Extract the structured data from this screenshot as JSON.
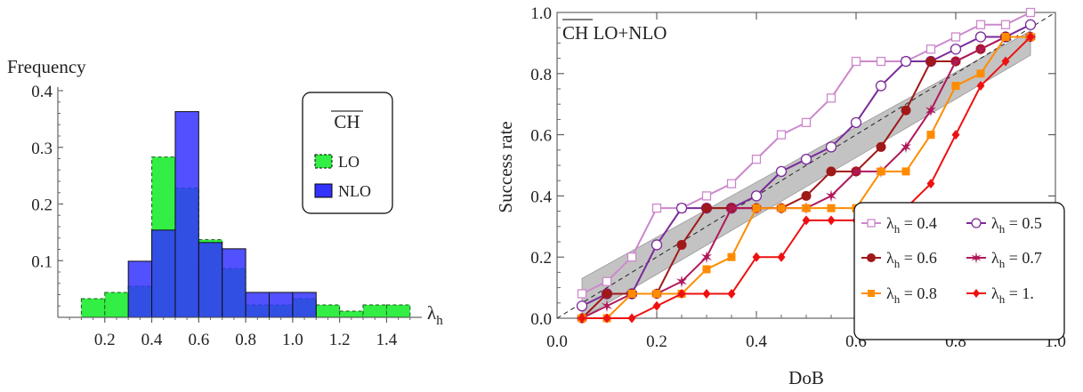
{
  "chart_data": [
    {
      "type": "histogram",
      "ylabel": "Frequency",
      "xlabel": "λ",
      "xlabel_sub": "h",
      "xlim": [
        0.0,
        1.55
      ],
      "ylim": [
        0,
        0.4
      ],
      "xticks": [
        "0.2",
        "0.4",
        "0.6",
        "0.8",
        "1.0",
        "1.2",
        "1.4"
      ],
      "xtick_values": [
        0.2,
        0.4,
        0.6,
        0.8,
        1.0,
        1.2,
        1.4
      ],
      "yticks": [
        "0.1",
        "0.2",
        "0.3",
        "0.4"
      ],
      "ytick_values": [
        0.1,
        0.2,
        0.3,
        0.4
      ],
      "bin_edges": [
        0.1,
        0.2,
        0.3,
        0.4,
        0.5,
        0.6,
        0.7,
        0.8,
        0.9,
        1.0,
        1.1,
        1.2,
        1.3,
        1.4,
        1.5
      ],
      "legend_title": "CH",
      "legend_placement": "top-right",
      "series": [
        {
          "name": "LO",
          "color": "#33ee44",
          "values": [
            0.033,
            0.044,
            0.055,
            0.283,
            0.228,
            0.137,
            0.086,
            0.022,
            0.022,
            0.033,
            0.022,
            0.011,
            0.022,
            0.022
          ]
        },
        {
          "name": "NLO",
          "color": "#3333ff",
          "values": [
            0,
            0,
            0.099,
            0.154,
            0.363,
            0.132,
            0.121,
            0.044,
            0.044,
            0.044,
            0,
            0,
            0,
            0
          ]
        }
      ]
    },
    {
      "type": "line",
      "title": "CH LO+NLO",
      "title_overline_part": "CH",
      "title_rest": " LO+NLO",
      "xlabel": "DoB",
      "ylabel": "Success rate",
      "xlim": [
        0.0,
        1.0
      ],
      "ylim": [
        0.0,
        1.0
      ],
      "xticks": [
        "0.0",
        "0.2",
        "0.4",
        "0.6",
        "0.8",
        "1.0"
      ],
      "xtick_values": [
        0.0,
        0.2,
        0.4,
        0.6,
        0.8,
        1.0
      ],
      "yticks": [
        "0.0",
        "0.2",
        "0.4",
        "0.6",
        "0.8",
        "1.0"
      ],
      "ytick_values": [
        0.0,
        0.2,
        0.4,
        0.6,
        0.8,
        1.0
      ],
      "diagonal": true,
      "band": {
        "x": [
          0.05,
          0.95
        ],
        "lower": [
          0.0,
          0.86
        ],
        "upper": [
          0.13,
          0.94
        ]
      },
      "legend_placement": "bottom-right",
      "x": [
        0.05,
        0.1,
        0.15,
        0.2,
        0.25,
        0.3,
        0.35,
        0.4,
        0.45,
        0.5,
        0.55,
        0.6,
        0.65,
        0.7,
        0.75,
        0.8,
        0.85,
        0.9,
        0.95
      ],
      "series": [
        {
          "name": "λh = 0.4",
          "label_prefix": "λ",
          "label_sub": "h",
          "label_suffix": " = 0.4",
          "color": "#cc88cc",
          "marker": "open-square",
          "values": [
            0.08,
            0.12,
            0.2,
            0.36,
            0.36,
            0.4,
            0.44,
            0.52,
            0.6,
            0.64,
            0.72,
            0.84,
            0.84,
            0.84,
            0.88,
            0.92,
            0.96,
            0.96,
            1.0
          ]
        },
        {
          "name": "λh = 0.5",
          "label_prefix": "λ",
          "label_sub": "h",
          "label_suffix": " = 0.5",
          "color": "#7a2a99",
          "marker": "open-circle",
          "values": [
            0.04,
            0.08,
            0.08,
            0.24,
            0.36,
            0.36,
            0.36,
            0.4,
            0.48,
            0.52,
            0.56,
            0.64,
            0.76,
            0.84,
            0.84,
            0.88,
            0.92,
            0.92,
            0.96
          ]
        },
        {
          "name": "λh = 0.6",
          "label_prefix": "λ",
          "label_sub": "h",
          "label_suffix": " = 0.6",
          "color": "#a01818",
          "marker": "filled-circle",
          "values": [
            0.0,
            0.08,
            0.08,
            0.08,
            0.24,
            0.36,
            0.36,
            0.36,
            0.36,
            0.4,
            0.48,
            0.48,
            0.56,
            0.68,
            0.84,
            0.84,
            0.88,
            0.92,
            0.92
          ]
        },
        {
          "name": "λh = 0.7",
          "label_prefix": "λ",
          "label_sub": "h",
          "label_suffix": " = 0.7",
          "color": "#b0185a",
          "marker": "star",
          "values": [
            0.0,
            0.04,
            0.08,
            0.08,
            0.12,
            0.2,
            0.36,
            0.36,
            0.36,
            0.36,
            0.4,
            0.48,
            0.48,
            0.56,
            0.68,
            0.84,
            0.88,
            0.92,
            0.92
          ]
        },
        {
          "name": "λh = 0.8",
          "label_prefix": "λ",
          "label_sub": "h",
          "label_suffix": " = 0.8",
          "color": "#ff8c00",
          "marker": "filled-square",
          "values": [
            0.0,
            0.0,
            0.08,
            0.08,
            0.08,
            0.16,
            0.2,
            0.36,
            0.36,
            0.36,
            0.36,
            0.36,
            0.48,
            0.48,
            0.6,
            0.76,
            0.8,
            0.92,
            0.92
          ]
        },
        {
          "name": "λh = 1.",
          "label_prefix": "λ",
          "label_sub": "h",
          "label_suffix": " = 1.",
          "color": "#ee1111",
          "marker": "filled-diamond",
          "values": [
            0.0,
            0.0,
            0.0,
            0.04,
            0.08,
            0.08,
            0.08,
            0.2,
            0.2,
            0.32,
            0.32,
            0.32,
            0.32,
            0.36,
            0.44,
            0.6,
            0.76,
            0.84,
            0.92
          ]
        }
      ]
    }
  ]
}
